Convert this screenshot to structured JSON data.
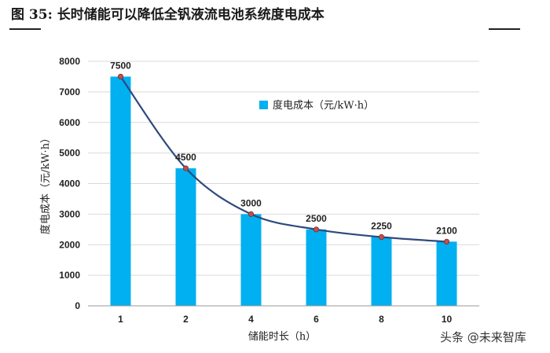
{
  "figure": {
    "title": "图 35:  长时储能可以降低全钒液流电池系统度电成本"
  },
  "watermark": "头条 @未来智库",
  "chart_data": {
    "type": "bar",
    "categories": [
      "1",
      "2",
      "4",
      "6",
      "8",
      "10"
    ],
    "series": [
      {
        "name": "度电成本（元/kW·h）",
        "values": [
          7500,
          4500,
          3000,
          2500,
          2250,
          2100
        ]
      }
    ],
    "data_labels": [
      "7500",
      "4500",
      "3000",
      "2500",
      "2250",
      "2100"
    ],
    "trend_line": true,
    "xlabel": "储能时长（h）",
    "ylabel": "度电成本（元/kW·h）",
    "ylim": [
      0,
      8000
    ],
    "yticks": [
      0,
      1000,
      2000,
      3000,
      4000,
      5000,
      6000,
      7000,
      8000
    ],
    "grid": true,
    "legend_position": "top-right",
    "colors": {
      "bar": "#00b0f0",
      "line": "#2e4a7d",
      "marker": "#c0504d",
      "grid": "#d9d9d9"
    }
  }
}
